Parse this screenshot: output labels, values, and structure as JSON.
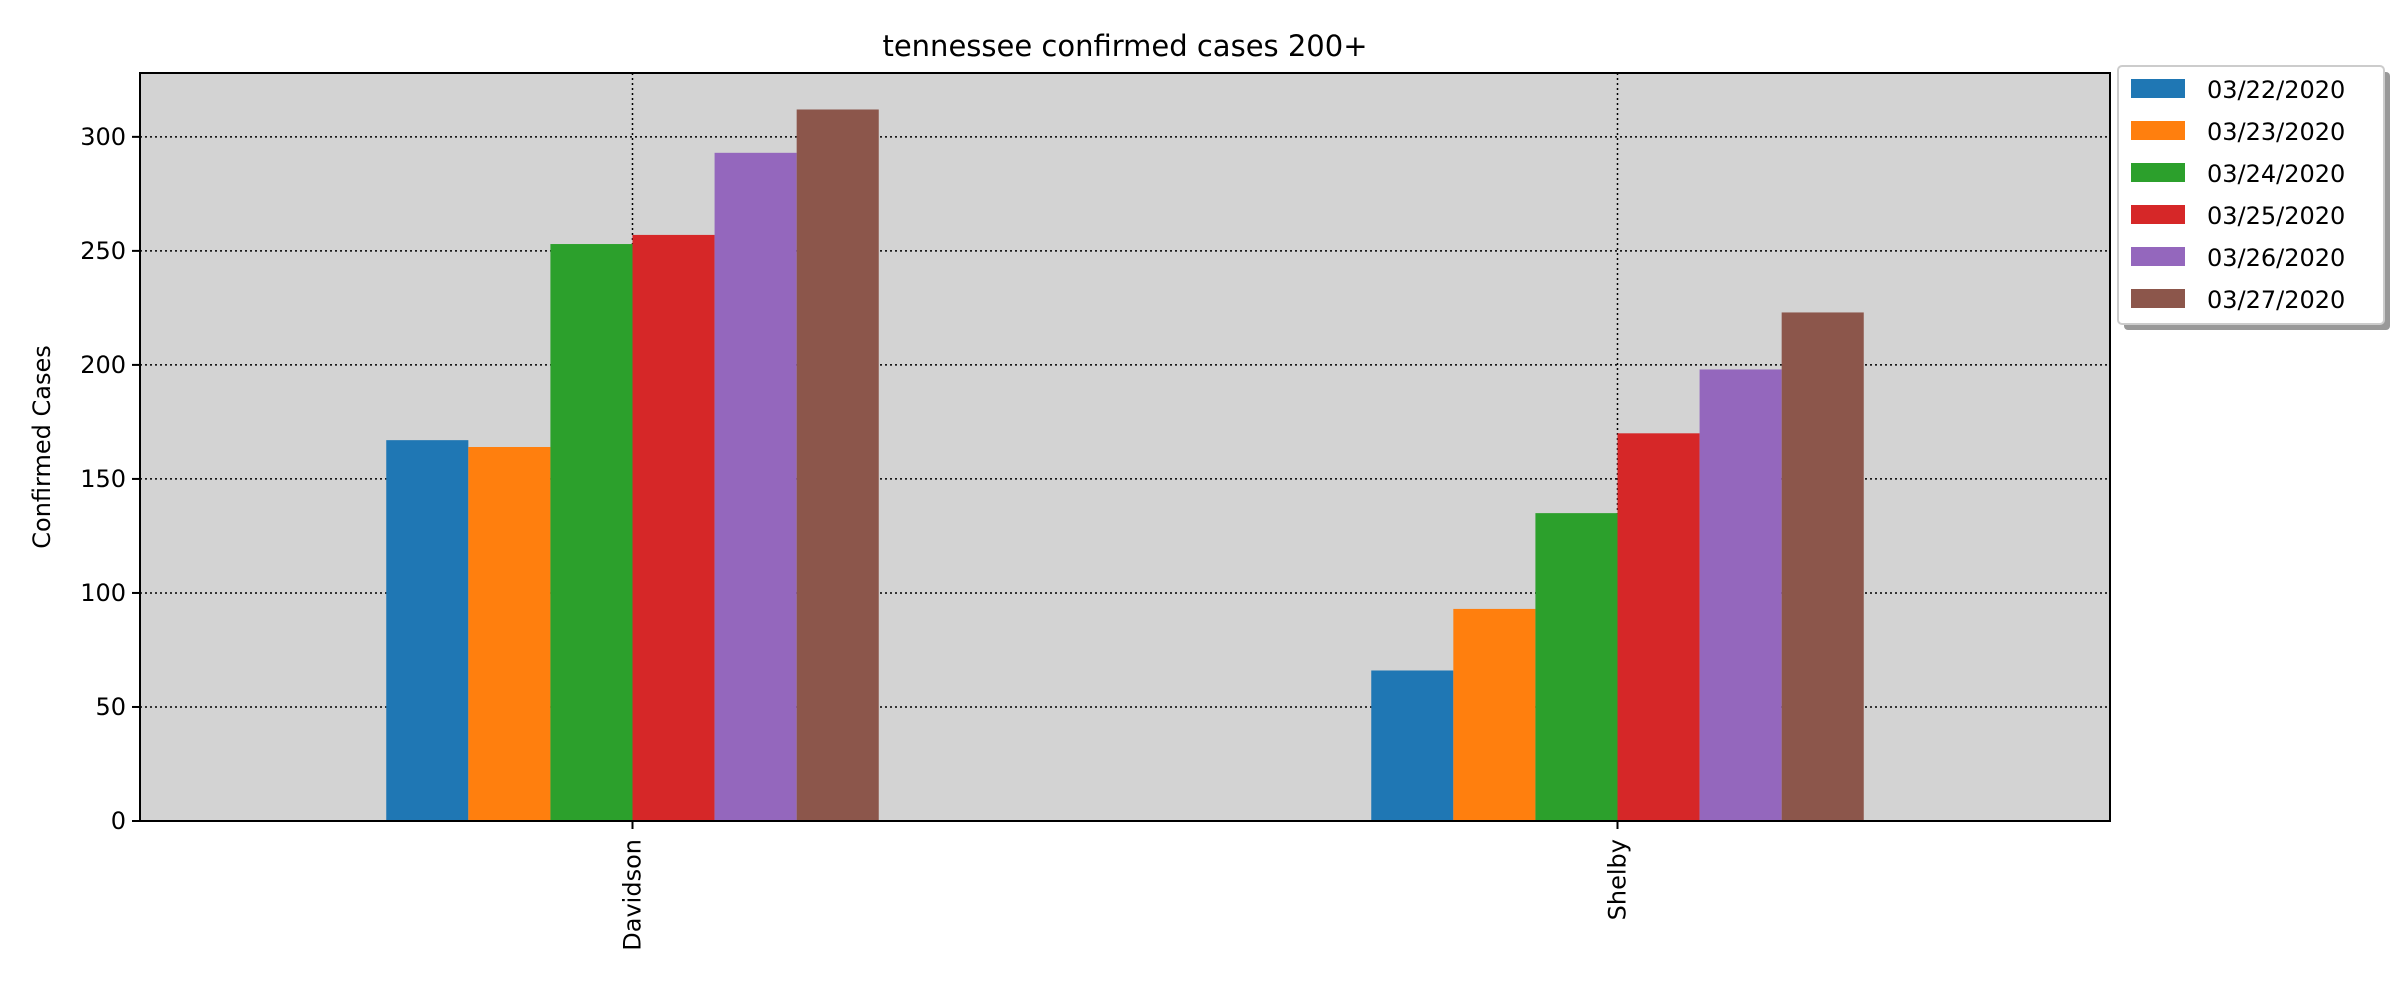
{
  "chart_data": {
    "type": "bar",
    "title": "tennessee confirmed cases 200+",
    "xlabel": "",
    "ylabel": "Confirmed Cases",
    "categories": [
      "Davidson",
      "Shelby"
    ],
    "ylim": [
      0,
      328
    ],
    "yticks": [
      0,
      50,
      100,
      150,
      200,
      250,
      300
    ],
    "ytick_labels": [
      "0",
      "50",
      "100",
      "150",
      "200",
      "250",
      "300"
    ],
    "grid": true,
    "legend_position": "outside top-right",
    "plot_background": "#d3d3d3",
    "series": [
      {
        "name": "03/22/2020",
        "color": "#1f77b4",
        "values": [
          167,
          66
        ]
      },
      {
        "name": "03/23/2020",
        "color": "#ff7f0e",
        "values": [
          164,
          93
        ]
      },
      {
        "name": "03/24/2020",
        "color": "#2ca02c",
        "values": [
          253,
          135
        ]
      },
      {
        "name": "03/25/2020",
        "color": "#d62728",
        "values": [
          257,
          170
        ]
      },
      {
        "name": "03/26/2020",
        "color": "#9467bd",
        "values": [
          293,
          198
        ]
      },
      {
        "name": "03/27/2020",
        "color": "#8c564b",
        "values": [
          312,
          223
        ]
      }
    ]
  }
}
